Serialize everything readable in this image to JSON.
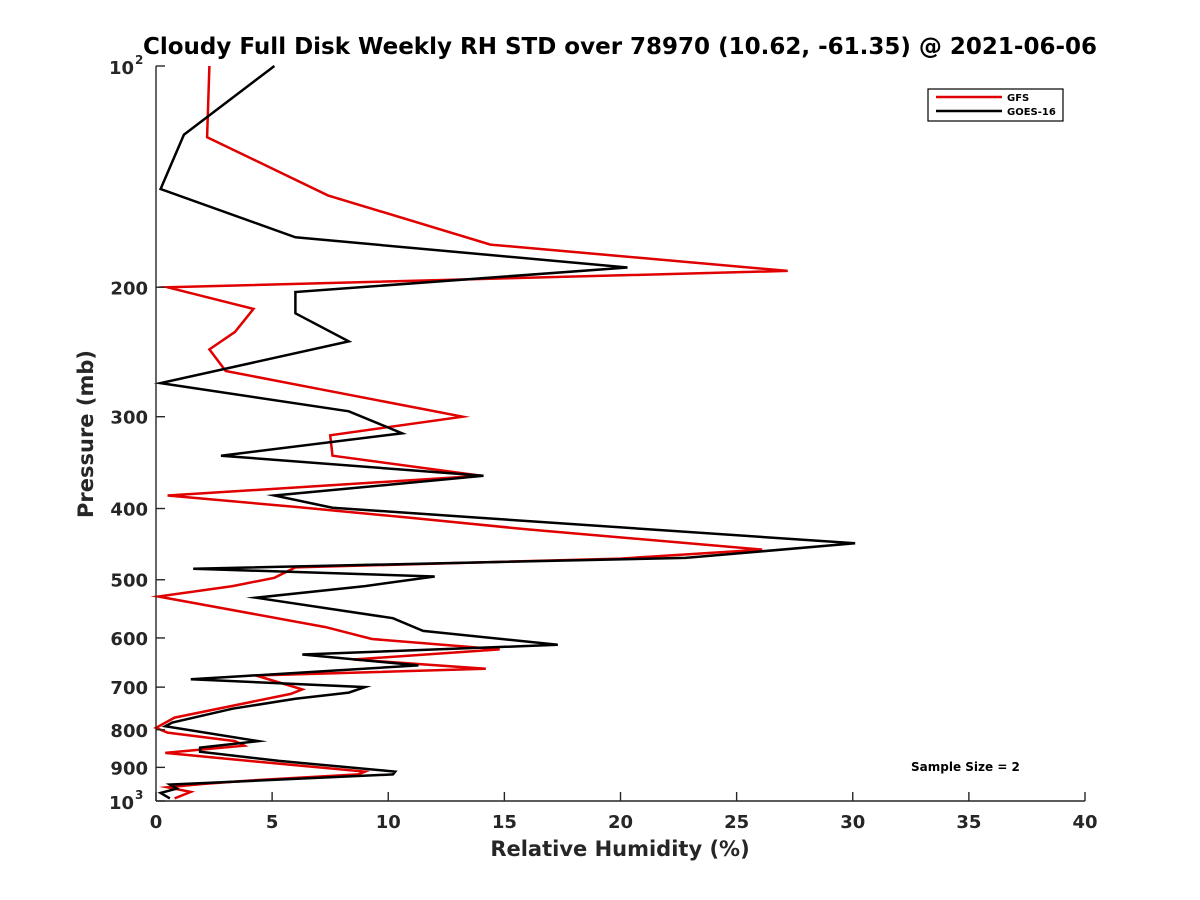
{
  "chart_data": {
    "type": "line",
    "title": "Cloudy Full Disk Weekly RH STD over 78970 (10.62, -61.35) @ 2021-06-06",
    "xlabel": "Relative Humidity (%)",
    "ylabel": "Pressure (mb)",
    "xlim": [
      0,
      40
    ],
    "ylim": [
      100,
      1000
    ],
    "y_scale": "log",
    "y_reversed": true,
    "x_ticks": [
      {
        "value": 0,
        "label": "0"
      },
      {
        "value": 5,
        "label": "5"
      },
      {
        "value": 10,
        "label": "10"
      },
      {
        "value": 15,
        "label": "15"
      },
      {
        "value": 20,
        "label": "20"
      },
      {
        "value": 25,
        "label": "25"
      },
      {
        "value": 30,
        "label": "30"
      },
      {
        "value": 35,
        "label": "35"
      },
      {
        "value": 40,
        "label": "40"
      }
    ],
    "y_ticks": [
      {
        "value": 100,
        "base": "10",
        "exp": "2"
      },
      {
        "value": 200,
        "base": "200",
        "exp": ""
      },
      {
        "value": 300,
        "base": "300",
        "exp": ""
      },
      {
        "value": 400,
        "base": "400",
        "exp": ""
      },
      {
        "value": 500,
        "base": "500",
        "exp": ""
      },
      {
        "value": 600,
        "base": "600",
        "exp": ""
      },
      {
        "value": 700,
        "base": "700",
        "exp": ""
      },
      {
        "value": 800,
        "base": "800",
        "exp": ""
      },
      {
        "value": 900,
        "base": "900",
        "exp": ""
      },
      {
        "value": 1000,
        "base": "10",
        "exp": "3"
      }
    ],
    "grid": false,
    "legend_position": "top-right",
    "annotation": "Sample Size = 2",
    "series": [
      {
        "name": "GFS",
        "color": "#e00000",
        "points": [
          [
            2.3,
            100
          ],
          [
            2.2,
            125
          ],
          [
            7.4,
            150
          ],
          [
            14.4,
            175
          ],
          [
            27.2,
            190
          ],
          [
            0.5,
            200
          ],
          [
            4.2,
            214
          ],
          [
            3.4,
            230
          ],
          [
            2.3,
            243
          ],
          [
            3.0,
            260
          ],
          [
            13.2,
            300
          ],
          [
            7.5,
            318
          ],
          [
            7.6,
            339
          ],
          [
            14.0,
            361
          ],
          [
            0.5,
            384
          ],
          [
            6.0,
            398
          ],
          [
            11.0,
            412
          ],
          [
            16.0,
            427
          ],
          [
            26.1,
            455
          ],
          [
            20.0,
            468
          ],
          [
            6.0,
            481
          ],
          [
            5.1,
            497
          ],
          [
            3.3,
            510
          ],
          [
            0.1,
            527
          ],
          [
            7.3,
            580
          ],
          [
            9.3,
            602
          ],
          [
            14.8,
            622
          ],
          [
            8.5,
            642
          ],
          [
            14.2,
            661
          ],
          [
            4.3,
            675
          ],
          [
            6.3,
            705
          ],
          [
            5.8,
            715
          ],
          [
            0.8,
            770
          ],
          [
            0.0,
            795
          ],
          [
            0.5,
            807
          ],
          [
            3.4,
            829
          ],
          [
            3.8,
            841
          ],
          [
            1.8,
            852
          ],
          [
            0.4,
            860
          ],
          [
            4.0,
            882
          ],
          [
            9.0,
            912
          ],
          [
            8.7,
            920
          ],
          [
            4.0,
            938
          ],
          [
            2.0,
            948
          ],
          [
            0.5,
            958
          ],
          [
            1.5,
            972
          ],
          [
            0.8,
            992
          ]
        ]
      },
      {
        "name": "GOES-16",
        "color": "#000000",
        "points": [
          [
            5.1,
            100
          ],
          [
            1.2,
            124
          ],
          [
            0.2,
            147
          ],
          [
            6.0,
            171
          ],
          [
            20.3,
            188
          ],
          [
            6.0,
            203
          ],
          [
            6.0,
            217
          ],
          [
            8.3,
            237
          ],
          [
            0.2,
            270
          ],
          [
            8.3,
            295
          ],
          [
            10.6,
            316
          ],
          [
            2.8,
            339
          ],
          [
            14.1,
            361
          ],
          [
            5.1,
            384
          ],
          [
            7.6,
            399
          ],
          [
            14.0,
            412
          ],
          [
            30.1,
            446
          ],
          [
            22.8,
            467
          ],
          [
            1.6,
            483
          ],
          [
            12.0,
            495
          ],
          [
            9.0,
            510
          ],
          [
            4.3,
            529
          ],
          [
            10.2,
            564
          ],
          [
            11.5,
            587
          ],
          [
            17.3,
            613
          ],
          [
            6.3,
            632
          ],
          [
            11.3,
            654
          ],
          [
            1.5,
            683
          ],
          [
            9.0,
            700
          ],
          [
            8.3,
            712
          ],
          [
            6.0,
            726
          ],
          [
            3.3,
            749
          ],
          [
            0.7,
            782
          ],
          [
            0.4,
            791
          ],
          [
            4.4,
            829
          ],
          [
            1.9,
            846
          ],
          [
            1.9,
            857
          ],
          [
            5.3,
            882
          ],
          [
            10.3,
            912
          ],
          [
            10.2,
            920
          ],
          [
            0.6,
            950
          ],
          [
            0.9,
            962
          ],
          [
            0.2,
            975
          ],
          [
            0.6,
            992
          ]
        ]
      }
    ]
  }
}
